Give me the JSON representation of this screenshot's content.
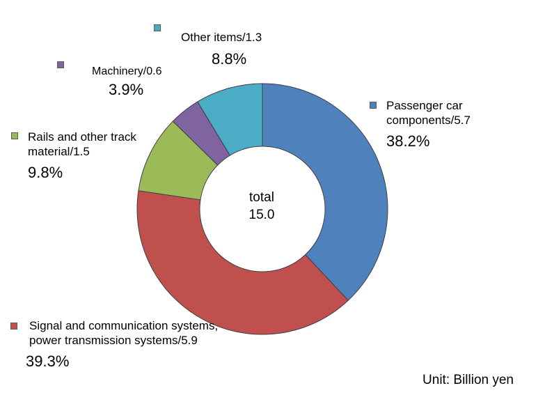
{
  "chart_data": {
    "type": "pie",
    "style": "donut",
    "unit_label": "Unit: Billion yen",
    "center_label": "total",
    "center_value": "15.0",
    "slices": [
      {
        "name": "Passenger car components",
        "label_lines": [
          "Passenger car",
          "components/5.7"
        ],
        "value": 5.7,
        "percent": "38.2%",
        "color": "#4f81bd"
      },
      {
        "name": "Signal and communication systems, power transmission systems",
        "label_lines": [
          "Signal and communication systems,",
          "power transmission systems/5.9"
        ],
        "value": 5.9,
        "percent": "39.3%",
        "color": "#c0504d"
      },
      {
        "name": "Rails and other track material",
        "label_lines": [
          "Rails and other track",
          "material/1.5"
        ],
        "value": 1.5,
        "percent": "9.8%",
        "color": "#9bbb59"
      },
      {
        "name": "Machinery",
        "label_lines": [
          "Machinery/0.6"
        ],
        "value": 0.6,
        "percent": "3.9%",
        "color": "#8064a2"
      },
      {
        "name": "Other items",
        "label_lines": [
          "Other items/1.3"
        ],
        "value": 1.3,
        "percent": "8.8%",
        "color": "#4bacc6"
      }
    ]
  }
}
